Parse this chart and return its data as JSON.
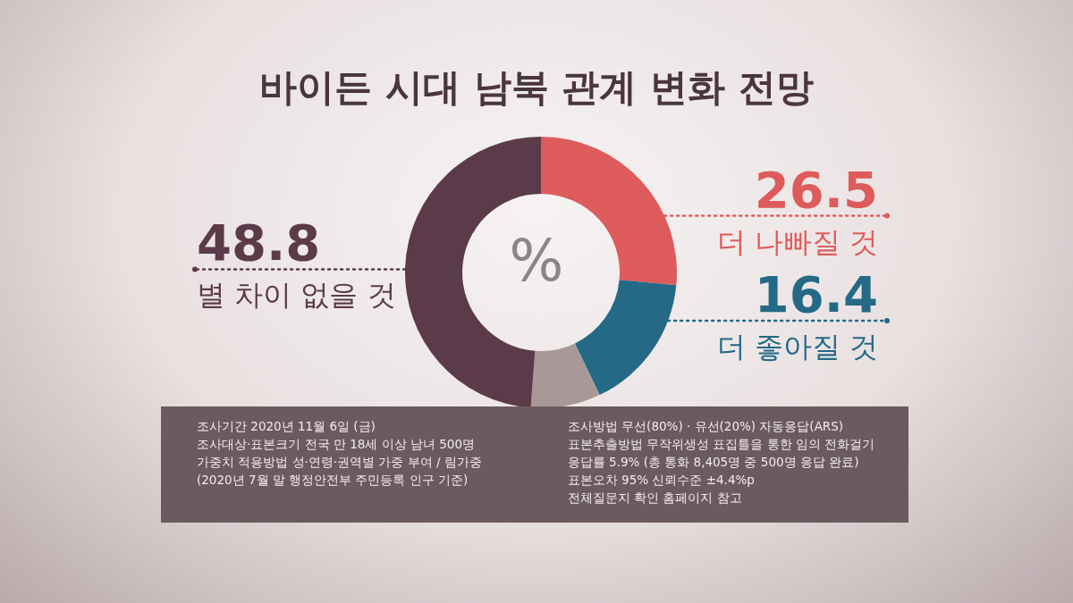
{
  "chart_data": {
    "type": "donut",
    "title": "바이든 시대 남북 관계 변화 전망",
    "categories": [
      "더 나빠질 것",
      "더 좋아질 것",
      null,
      "별 차이 없을 것"
    ],
    "values": [
      26.5,
      16.4,
      8.3,
      48.8
    ],
    "colors": [
      "#de5b5b",
      "#246a86",
      "#a89898",
      "#5b3b49"
    ],
    "value_labels": [
      "26.5",
      "16.4",
      null,
      "48.8"
    ],
    "legend": "right",
    "annotations": [
      "%",
      "조사기간 2020년 11월 6일 (금)",
      "조사대상·표본크기 전국 만 18세 이상 남녀 500명",
      "가중치 적용방법 성·연령·권역별 가중 부여 / 림가중",
      "(2020년 7월 말 행정안전부 주민등록 인구 기준)",
      "조사방법 무선(80%) · 유선(20%) 자동응답(ARS)",
      "표본추출방법 무작위생성 표집틀을 통한 임의 전화걸기",
      "응답률 5.9% (총 통화 8,405명 중 500명 응답 완료)",
      "표본오차 95% 신뢰수준 ±4.4%p",
      "전체질문지 확인 홈페이지 참고"
    ]
  }
}
